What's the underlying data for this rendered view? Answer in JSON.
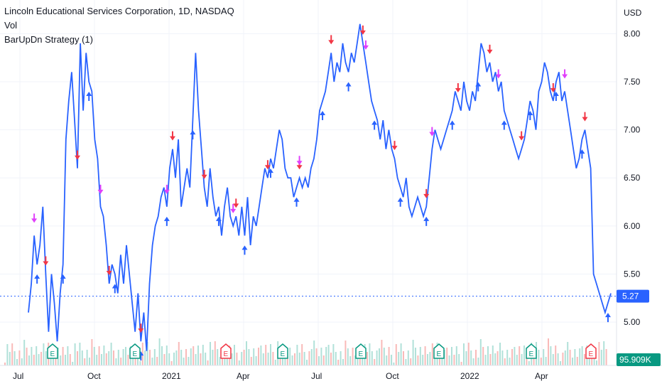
{
  "legend": {
    "title": "Lincoln Educational Services Corporation, 1D, NASDAQ",
    "vol": "Vol",
    "strategy": "BarUpDn Strategy (1)"
  },
  "colors": {
    "line": "#2962ff",
    "up": "#2962ff",
    "down": "#f23645",
    "magenta": "#e040fb",
    "earnings_up": "#089981",
    "earnings_down": "#f23645",
    "last_price_bg": "#2962ff",
    "volume_bg": "#089981"
  },
  "chart_data": {
    "type": "line",
    "currency": "USD",
    "ylim": [
      4.55,
      8.35
    ],
    "yticks": [
      "8.00",
      "7.50",
      "7.00",
      "6.50",
      "6.00",
      "5.50",
      "5.00"
    ],
    "x_labels": [
      "Jul",
      "Oct",
      "2021",
      "Apr",
      "Jul",
      "Oct",
      "2022",
      "Apr"
    ],
    "last_price": "5.27",
    "last_volume": "95.909K",
    "series": [
      {
        "values": [
          5.1,
          5.4,
          5.9,
          5.6,
          5.8,
          6.2,
          5.5,
          4.9,
          5.5,
          5.2,
          4.8,
          5.3,
          5.6,
          6.9,
          7.3,
          7.6,
          7.1,
          6.6,
          7.9,
          7.2,
          7.8,
          7.5,
          7.4,
          6.9,
          6.7,
          6.2,
          6.1,
          5.8,
          5.4,
          5.6,
          5.5,
          5.3,
          5.7,
          5.4,
          5.8,
          5.5,
          5.2,
          4.9,
          5.3,
          4.8,
          5.1,
          4.7,
          5.4,
          5.8,
          6.0,
          6.1,
          6.3,
          6.4,
          6.2,
          6.6,
          6.8,
          6.5,
          6.9,
          6.2,
          6.4,
          6.6,
          6.4,
          7.1,
          7.8,
          7.2,
          6.8,
          6.4,
          6.2,
          6.6,
          6.3,
          6.1,
          6.2,
          5.9,
          6.2,
          6.4,
          6.1,
          6.0,
          6.1,
          5.9,
          6.2,
          5.9,
          6.3,
          5.8,
          6.1,
          6.0,
          6.2,
          6.4,
          6.6,
          6.5,
          6.7,
          6.6,
          6.8,
          7.0,
          6.9,
          6.6,
          6.5,
          6.5,
          6.3,
          6.4,
          6.5,
          6.4,
          6.5,
          6.4,
          6.6,
          6.7,
          6.9,
          7.2,
          7.3,
          7.4,
          7.6,
          7.8,
          7.5,
          7.7,
          7.6,
          7.9,
          7.7,
          7.6,
          7.8,
          7.7,
          7.9,
          8.1,
          7.9,
          7.7,
          7.5,
          7.3,
          7.2,
          7.1,
          6.9,
          7.1,
          6.8,
          7.0,
          6.8,
          6.7,
          6.5,
          6.4,
          6.3,
          6.5,
          6.2,
          6.1,
          6.2,
          6.3,
          6.2,
          6.1,
          6.2,
          6.5,
          6.8,
          7.0,
          6.9,
          6.8,
          6.9,
          7.0,
          7.1,
          7.2,
          7.4,
          7.3,
          7.2,
          7.5,
          7.3,
          7.2,
          7.4,
          7.3,
          7.6,
          7.9,
          7.8,
          7.6,
          7.7,
          7.5,
          7.6,
          7.4,
          7.5,
          7.2,
          7.1,
          7.0,
          6.9,
          6.8,
          6.7,
          6.8,
          6.9,
          7.1,
          7.3,
          7.2,
          7.0,
          7.4,
          7.5,
          7.7,
          7.6,
          7.4,
          7.3,
          7.5,
          7.6,
          7.3,
          7.4,
          7.2,
          7.0,
          6.8,
          6.6,
          6.7,
          6.9,
          7.0,
          6.8,
          6.6,
          5.5,
          5.4,
          5.3,
          5.2,
          5.1,
          5.2,
          5.3
        ]
      }
    ]
  }
}
